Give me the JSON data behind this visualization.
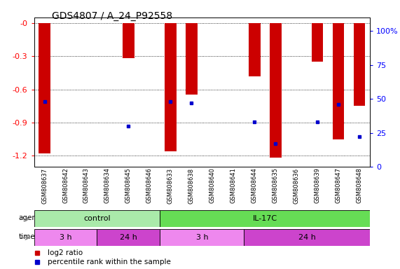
{
  "title": "GDS4807 / A_24_P92558",
  "samples": [
    "GSM808637",
    "GSM808642",
    "GSM808643",
    "GSM808634",
    "GSM808645",
    "GSM808646",
    "GSM808633",
    "GSM808638",
    "GSM808640",
    "GSM808641",
    "GSM808644",
    "GSM808635",
    "GSM808636",
    "GSM808639",
    "GSM808647",
    "GSM808648"
  ],
  "log2_ratio": [
    -1.18,
    0,
    0,
    0,
    -0.32,
    0,
    -1.16,
    -0.65,
    0,
    0,
    -0.48,
    -1.22,
    0,
    -0.35,
    -1.05,
    -0.75
  ],
  "percentile": [
    48,
    0,
    0,
    0,
    30,
    0,
    48,
    47,
    0,
    0,
    33,
    17,
    0,
    33,
    46,
    22
  ],
  "agent_groups": [
    {
      "label": "control",
      "start": 0,
      "end": 6,
      "color": "#aaeaaa"
    },
    {
      "label": "IL-17C",
      "start": 6,
      "end": 16,
      "color": "#66dd55"
    }
  ],
  "time_groups": [
    {
      "label": "3 h",
      "start": 0,
      "end": 3,
      "color": "#ee88ee"
    },
    {
      "label": "24 h",
      "start": 3,
      "end": 6,
      "color": "#dd44dd"
    },
    {
      "label": "3 h",
      "start": 6,
      "end": 10,
      "color": "#ee88ee"
    },
    {
      "label": "24 h",
      "start": 10,
      "end": 16,
      "color": "#dd44dd"
    }
  ],
  "ylim_left": [
    -1.3,
    0.05
  ],
  "ylim_right": [
    0,
    110
  ],
  "yticks_left": [
    0,
    -0.3,
    -0.6,
    -0.9,
    -1.2
  ],
  "yticks_right": [
    0,
    25,
    50,
    75,
    100
  ],
  "yticklabels_right": [
    "0",
    "25",
    "50",
    "75",
    "100%"
  ],
  "bar_color": "#cc0000",
  "dot_color": "#0000cc",
  "background_color": "#ffffff",
  "grid_color": "#000000",
  "legend_red": "log2 ratio",
  "legend_blue": "percentile rank within the sample"
}
